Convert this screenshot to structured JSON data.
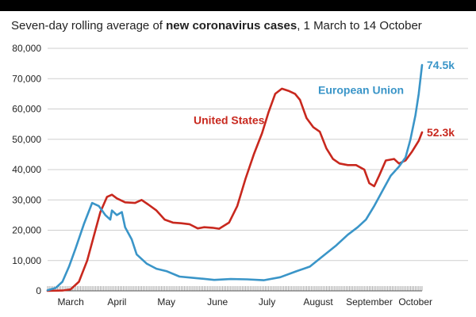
{
  "title": {
    "prefix": "Seven-day rolling average of ",
    "bold": "new coronavirus cases",
    "suffix": ", 1 March to 14 October"
  },
  "chart_data": {
    "type": "line",
    "title": "Seven-day rolling average of new coronavirus cases, 1 March to 14 October",
    "x_range": [
      "2020-03-01",
      "2020-10-14"
    ],
    "ylim": [
      0,
      80000
    ],
    "y_ticks": [
      0,
      10000,
      20000,
      30000,
      40000,
      50000,
      60000,
      70000,
      80000
    ],
    "y_tick_labels": [
      "0",
      "10,000",
      "20,000",
      "30,000",
      "40,000",
      "50,000",
      "60,000",
      "70,000",
      "80,000"
    ],
    "x_ticks": [
      {
        "label": "March",
        "date": "2020-03-15"
      },
      {
        "label": "April",
        "date": "2020-04-12"
      },
      {
        "label": "May",
        "date": "2020-05-12"
      },
      {
        "label": "June",
        "date": "2020-06-12"
      },
      {
        "label": "July",
        "date": "2020-07-12"
      },
      {
        "label": "August",
        "date": "2020-08-12"
      },
      {
        "label": "September",
        "date": "2020-09-12"
      },
      {
        "label": "October",
        "date": "2020-10-10"
      }
    ],
    "grid": true,
    "series": [
      {
        "name": "United States",
        "color": "#c8281e",
        "end_label": "52.3k",
        "points": [
          [
            "2020-03-01",
            0
          ],
          [
            "2020-03-10",
            100
          ],
          [
            "2020-03-15",
            500
          ],
          [
            "2020-03-20",
            3000
          ],
          [
            "2020-03-25",
            10000
          ],
          [
            "2020-03-29",
            18000
          ],
          [
            "2020-04-02",
            26000
          ],
          [
            "2020-04-06",
            31000
          ],
          [
            "2020-04-09",
            31700
          ],
          [
            "2020-04-12",
            30500
          ],
          [
            "2020-04-17",
            29200
          ],
          [
            "2020-04-23",
            29000
          ],
          [
            "2020-04-27",
            30000
          ],
          [
            "2020-05-01",
            28500
          ],
          [
            "2020-05-06",
            26500
          ],
          [
            "2020-05-11",
            23500
          ],
          [
            "2020-05-16",
            22500
          ],
          [
            "2020-05-21",
            22300
          ],
          [
            "2020-05-26",
            22000
          ],
          [
            "2020-05-31",
            20600
          ],
          [
            "2020-06-04",
            21000
          ],
          [
            "2020-06-09",
            20800
          ],
          [
            "2020-06-13",
            20500
          ],
          [
            "2020-06-19",
            22500
          ],
          [
            "2020-06-24",
            28000
          ],
          [
            "2020-06-29",
            37000
          ],
          [
            "2020-07-04",
            45000
          ],
          [
            "2020-07-09",
            52000
          ],
          [
            "2020-07-13",
            59000
          ],
          [
            "2020-07-17",
            65000
          ],
          [
            "2020-07-21",
            66700
          ],
          [
            "2020-07-25",
            66000
          ],
          [
            "2020-07-29",
            65000
          ],
          [
            "2020-08-01",
            63000
          ],
          [
            "2020-08-05",
            57000
          ],
          [
            "2020-08-09",
            54000
          ],
          [
            "2020-08-13",
            52500
          ],
          [
            "2020-08-17",
            47000
          ],
          [
            "2020-08-21",
            43500
          ],
          [
            "2020-08-25",
            42000
          ],
          [
            "2020-08-30",
            41500
          ],
          [
            "2020-09-04",
            41500
          ],
          [
            "2020-09-09",
            40000
          ],
          [
            "2020-09-12",
            35500
          ],
          [
            "2020-09-15",
            34500
          ],
          [
            "2020-09-18",
            38000
          ],
          [
            "2020-09-22",
            43000
          ],
          [
            "2020-09-27",
            43500
          ],
          [
            "2020-09-30",
            42000
          ],
          [
            "2020-10-04",
            43000
          ],
          [
            "2020-10-08",
            46000
          ],
          [
            "2020-10-12",
            49500
          ],
          [
            "2020-10-14",
            52300
          ]
        ]
      },
      {
        "name": "European Union",
        "color": "#3a95c8",
        "end_label": "74.5k",
        "points": [
          [
            "2020-03-01",
            200
          ],
          [
            "2020-03-06",
            1000
          ],
          [
            "2020-03-10",
            3000
          ],
          [
            "2020-03-14",
            8000
          ],
          [
            "2020-03-18",
            14000
          ],
          [
            "2020-03-23",
            22000
          ],
          [
            "2020-03-28",
            29000
          ],
          [
            "2020-04-01",
            28000
          ],
          [
            "2020-04-05",
            25000
          ],
          [
            "2020-04-08",
            23500
          ],
          [
            "2020-04-09",
            26500
          ],
          [
            "2020-04-12",
            25000
          ],
          [
            "2020-04-15",
            26000
          ],
          [
            "2020-04-17",
            21000
          ],
          [
            "2020-04-21",
            17000
          ],
          [
            "2020-04-24",
            12000
          ],
          [
            "2020-04-30",
            9000
          ],
          [
            "2020-05-06",
            7300
          ],
          [
            "2020-05-12",
            6500
          ],
          [
            "2020-05-20",
            4700
          ],
          [
            "2020-05-28",
            4300
          ],
          [
            "2020-06-03",
            4000
          ],
          [
            "2020-06-10",
            3600
          ],
          [
            "2020-06-20",
            3900
          ],
          [
            "2020-06-30",
            3800
          ],
          [
            "2020-07-10",
            3500
          ],
          [
            "2020-07-20",
            4500
          ],
          [
            "2020-07-30",
            6500
          ],
          [
            "2020-08-07",
            8000
          ],
          [
            "2020-08-15",
            11500
          ],
          [
            "2020-08-23",
            15000
          ],
          [
            "2020-08-30",
            18500
          ],
          [
            "2020-09-05",
            21000
          ],
          [
            "2020-09-10",
            23500
          ],
          [
            "2020-09-15",
            28000
          ],
          [
            "2020-09-20",
            33000
          ],
          [
            "2020-09-25",
            38000
          ],
          [
            "2020-09-30",
            41000
          ],
          [
            "2020-10-04",
            44000
          ],
          [
            "2020-10-07",
            50000
          ],
          [
            "2020-10-10",
            58000
          ],
          [
            "2020-10-12",
            65000
          ],
          [
            "2020-10-14",
            74500
          ]
        ]
      }
    ]
  }
}
